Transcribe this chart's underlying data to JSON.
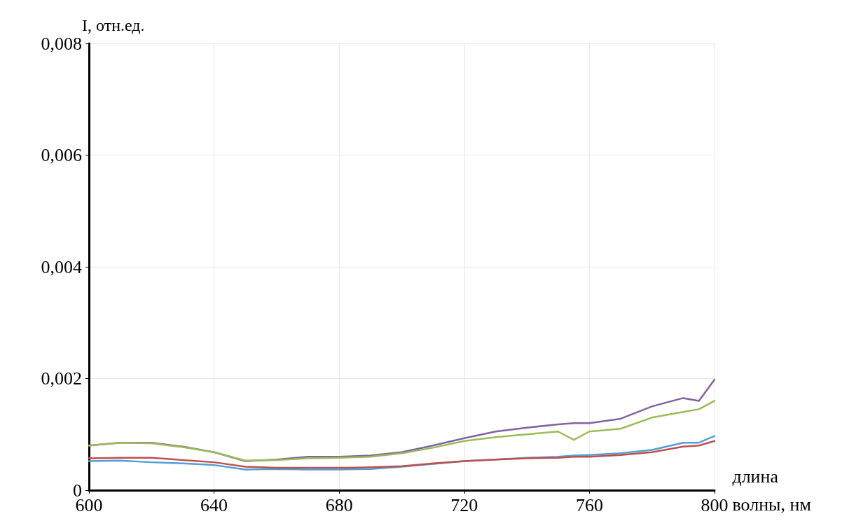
{
  "chart_data": {
    "type": "line",
    "ylabel": "I, отн.ед.",
    "xlabel": "длина волны, нм",
    "x": [
      600,
      610,
      620,
      630,
      640,
      650,
      660,
      670,
      680,
      690,
      700,
      710,
      720,
      730,
      740,
      750,
      755,
      760,
      770,
      780,
      790,
      795,
      800
    ],
    "series": [
      {
        "color": "#8064a2",
        "values": [
          0.0008,
          0.00085,
          0.00085,
          0.00078,
          0.00068,
          0.00052,
          0.00055,
          0.0006,
          0.0006,
          0.00062,
          0.00068,
          0.0008,
          0.00093,
          0.00105,
          0.00112,
          0.00118,
          0.0012,
          0.0012,
          0.00128,
          0.0015,
          0.00165,
          0.0016,
          0.00198
        ]
      },
      {
        "color": "#9bbb59",
        "values": [
          0.0008,
          0.00085,
          0.00084,
          0.00077,
          0.00068,
          0.00053,
          0.00054,
          0.00057,
          0.00058,
          0.0006,
          0.00066,
          0.00076,
          0.00088,
          0.00095,
          0.001,
          0.00105,
          0.0009,
          0.00105,
          0.0011,
          0.0013,
          0.0014,
          0.00145,
          0.0016
        ]
      },
      {
        "color": "#4f9fd8",
        "values": [
          0.00052,
          0.00053,
          0.0005,
          0.00048,
          0.00045,
          0.00037,
          0.00038,
          0.00037,
          0.00037,
          0.00038,
          0.00042,
          0.00047,
          0.00052,
          0.00055,
          0.00058,
          0.0006,
          0.00062,
          0.00063,
          0.00066,
          0.00072,
          0.00085,
          0.00085,
          0.00097
        ]
      },
      {
        "color": "#c0504d",
        "values": [
          0.00057,
          0.00058,
          0.00058,
          0.00054,
          0.0005,
          0.00042,
          0.0004,
          0.0004,
          0.0004,
          0.00041,
          0.00043,
          0.00048,
          0.00052,
          0.00055,
          0.00057,
          0.00058,
          0.0006,
          0.0006,
          0.00063,
          0.00068,
          0.00078,
          0.0008,
          0.00088
        ]
      }
    ],
    "xlim": [
      600,
      800
    ],
    "xticks": [
      600,
      640,
      680,
      720,
      760,
      800
    ],
    "ylim": [
      0,
      0.008
    ],
    "yticks": [
      {
        "value": 0,
        "label": "0"
      },
      {
        "value": 0.002,
        "label": "0,002"
      },
      {
        "value": 0.004,
        "label": "0,004"
      },
      {
        "value": 0.006,
        "label": "0,006"
      },
      {
        "value": 0.008,
        "label": "0,008"
      }
    ],
    "grid": true,
    "marker": "none",
    "line_style": "solid"
  }
}
